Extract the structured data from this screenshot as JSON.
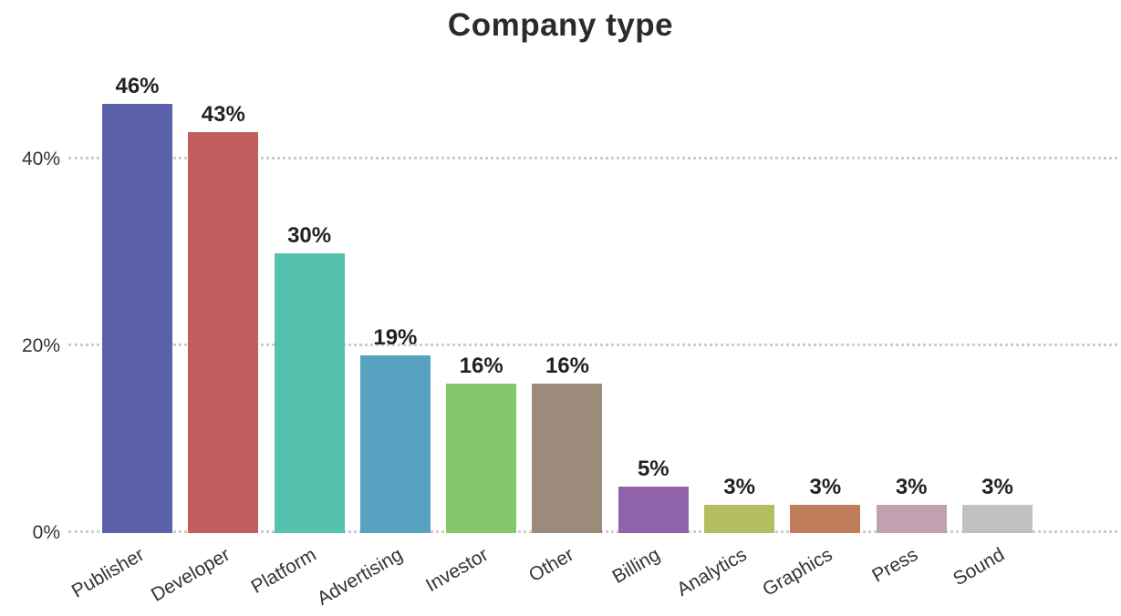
{
  "chart_data": {
    "type": "bar",
    "title": "Company type",
    "categories": [
      "Publisher",
      "Developer",
      "Platform",
      "Advertising",
      "Investor",
      "Other",
      "Billing",
      "Analytics",
      "Graphics",
      "Press",
      "Sound"
    ],
    "values": [
      46,
      43,
      30,
      19,
      16,
      16,
      5,
      3,
      3,
      3,
      3
    ],
    "value_labels": [
      "46%",
      "43%",
      "30%",
      "19%",
      "16%",
      "16%",
      "5%",
      "3%",
      "3%",
      "3%",
      "3%"
    ],
    "bar_colors": [
      "#5b61a9",
      "#c25e5e",
      "#55c2af",
      "#57a2c0",
      "#83c86a",
      "#9c8a7a",
      "#9163ad",
      "#b5bd62",
      "#c07d5c",
      "#c1a0b0",
      "#c0c2c1"
    ],
    "xlabel": "",
    "ylabel": "",
    "ylim": [
      0,
      50
    ],
    "yticks": [
      {
        "label": "0%",
        "value": 0
      },
      {
        "label": "20%",
        "value": 20
      },
      {
        "label": "40%",
        "value": 40
      }
    ],
    "grid": "horizontal-dotted",
    "legend_position": "none",
    "colors": {
      "background": "#ffffff",
      "title_text": "#2b2b2b",
      "axis_text": "#333333",
      "value_label_text": "#222222",
      "gridline": "#cdcdcd"
    }
  }
}
